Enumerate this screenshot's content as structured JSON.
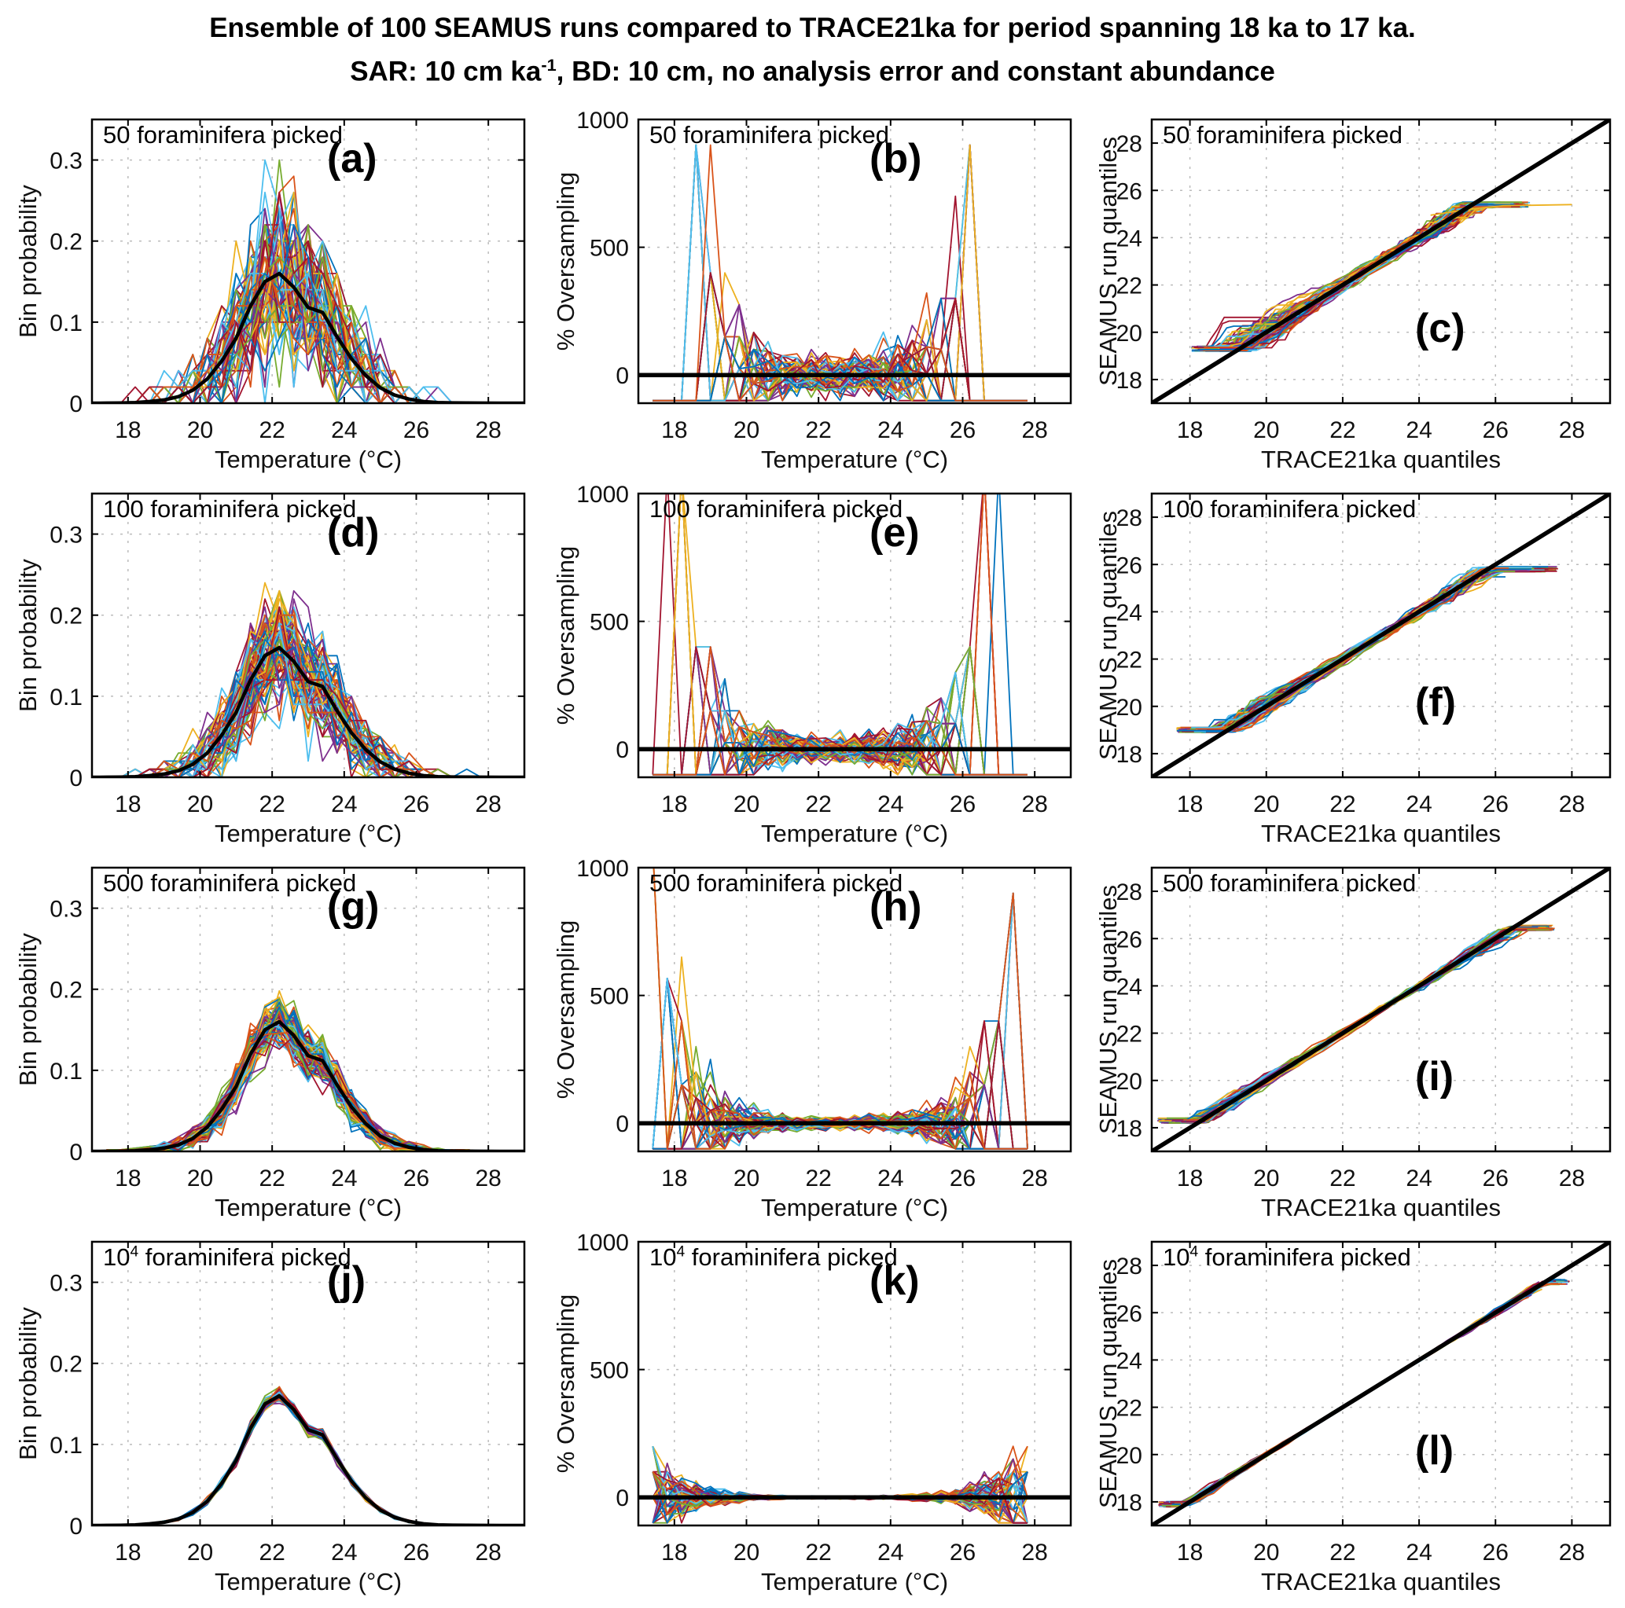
{
  "title": {
    "line1": "Ensemble of 100 SEAMUS runs compared to TRACE21ka for period spanning 18 ka to 17 ka.",
    "line2_prefix": "SAR: 10 cm ka",
    "line2_sup": "-1",
    "line2_suffix": ", BD: 10 cm, no analysis error and constant abundance"
  },
  "palette": [
    "#0072BD",
    "#D95319",
    "#EDB120",
    "#7E2F8E",
    "#77AC30",
    "#4DBEEE",
    "#A2142F"
  ],
  "chart_data": {
    "type": "line",
    "n_runs": 100,
    "description": "12-panel figure (4 rows x 3 columns). Each row = number of foraminifera picked (50, 100, 500, 10^4). Column 1: bin probability histograms of 100 SEAMUS runs (colored lines) vs TRACE21ka reference (thick black). Column 2: % oversampling of each run relative to TRACE21ka (black zero line). Column 3: QQ plots of SEAMUS run quantiles vs TRACE21ka quantiles (black 1:1 line).",
    "x_bins_temperature_degC": [
      17.4,
      17.8,
      18.2,
      18.6,
      19.0,
      19.4,
      19.8,
      20.2,
      20.6,
      21.0,
      21.4,
      21.8,
      22.2,
      22.6,
      23.0,
      23.4,
      23.8,
      24.2,
      24.6,
      25.0,
      25.4,
      25.8,
      26.2,
      26.6,
      27.0,
      27.4,
      27.8
    ],
    "reference_bin_probability_TRACE21ka": [
      0.0001,
      0.0003,
      0.0008,
      0.002,
      0.004,
      0.008,
      0.016,
      0.03,
      0.052,
      0.08,
      0.12,
      0.15,
      0.16,
      0.143,
      0.118,
      0.112,
      0.082,
      0.055,
      0.034,
      0.019,
      0.01,
      0.005,
      0.002,
      0.0008,
      0.0004,
      0.0002,
      0.0001
    ],
    "panels": [
      {
        "id": "a",
        "kind": "hist",
        "letter": "(a)",
        "letter_pos": "tr",
        "label_prefix": "50",
        "label_sup": "",
        "label_suffix": " foraminifera picked",
        "n_picked": 50,
        "xlabel": "Temperature (°C)",
        "ylabel": "Bin probability",
        "xlim": [
          17,
          29
        ],
        "ylim": [
          0,
          0.35
        ],
        "xticks": [
          18,
          20,
          22,
          24,
          26,
          28
        ],
        "yticks": [
          0,
          0.1,
          0.2,
          0.3
        ],
        "black_line": "TRACE21ka reference distribution, peak 0.16 at 22.2 °C",
        "seed": 7
      },
      {
        "id": "b",
        "kind": "oversamp",
        "letter": "(b)",
        "letter_pos": "tr",
        "label_prefix": "50",
        "label_sup": "",
        "label_suffix": " foraminifera picked",
        "n_picked": 50,
        "xlabel": "Temperature (°C)",
        "ylabel": "% Oversampling",
        "xlim": [
          17,
          29
        ],
        "ylim": [
          -110,
          1000
        ],
        "xticks": [
          18,
          20,
          22,
          24,
          26,
          28
        ],
        "yticks": [
          0,
          500,
          1000
        ],
        "black_line": "zero reference line (y=0)",
        "seed": 101
      },
      {
        "id": "c",
        "kind": "qq",
        "letter": "(c)",
        "letter_pos": "br",
        "label_prefix": "50",
        "label_sup": "",
        "label_suffix": " foraminifera picked",
        "n_picked": 50,
        "xlabel": "TRACE21ka quantiles",
        "ylabel": "SEAMUS run quantiles",
        "xlim": [
          17,
          29
        ],
        "ylim": [
          17,
          29
        ],
        "xticks": [
          18,
          20,
          22,
          24,
          26,
          28
        ],
        "yticks": [
          18,
          20,
          22,
          24,
          26,
          28
        ],
        "black_line": "1:1 line (y=x)",
        "seed": 23,
        "qq": {
          "x_range": [
            18.3,
            26.35
          ],
          "y_range": [
            19.3,
            25.4
          ],
          "s_center": 0.1,
          "s_tail": 0.5,
          "jx0": 0.9,
          "jx1": 0.9
        },
        "extra_line": {
          "color": "#EDB120",
          "points": [
            [
              24.3,
              24.95
            ],
            [
              25.3,
              25.2
            ],
            [
              26.2,
              25.35
            ],
            [
              28.0,
              25.4
            ]
          ]
        }
      },
      {
        "id": "d",
        "kind": "hist",
        "letter": "(d)",
        "letter_pos": "tr",
        "label_prefix": "100",
        "label_sup": "",
        "label_suffix": " foraminifera picked",
        "n_picked": 100,
        "xlabel": "Temperature (°C)",
        "ylabel": "Bin probability",
        "xlim": [
          17,
          29
        ],
        "ylim": [
          0,
          0.35
        ],
        "xticks": [
          18,
          20,
          22,
          24,
          26,
          28
        ],
        "yticks": [
          0,
          0.1,
          0.2,
          0.3
        ],
        "black_line": "TRACE21ka reference distribution, peak 0.16 at 22.2 °C",
        "seed": 8
      },
      {
        "id": "e",
        "kind": "oversamp",
        "letter": "(e)",
        "letter_pos": "tr",
        "label_prefix": "100",
        "label_sup": "",
        "label_suffix": " foraminifera picked",
        "n_picked": 100,
        "xlabel": "Temperature (°C)",
        "ylabel": "% Oversampling",
        "xlim": [
          17,
          29
        ],
        "ylim": [
          -110,
          1000
        ],
        "xticks": [
          18,
          20,
          22,
          24,
          26,
          28
        ],
        "yticks": [
          0,
          500,
          1000
        ],
        "black_line": "zero reference line (y=0)",
        "seed": 102
      },
      {
        "id": "f",
        "kind": "qq",
        "letter": "(f)",
        "letter_pos": "br",
        "label_prefix": "100",
        "label_sup": "",
        "label_suffix": " foraminifera picked",
        "n_picked": 100,
        "xlabel": "TRACE21ka quantiles",
        "ylabel": "SEAMUS run quantiles",
        "xlim": [
          17,
          29
        ],
        "ylim": [
          17,
          29
        ],
        "xticks": [
          18,
          20,
          22,
          24,
          26,
          28
        ],
        "yticks": [
          18,
          20,
          22,
          24,
          26,
          28
        ],
        "black_line": "1:1 line (y=x)",
        "seed": 24,
        "qq": {
          "x_range": [
            17.9,
            26.6
          ],
          "y_range": [
            19.0,
            25.8
          ],
          "s_center": 0.08,
          "s_tail": 0.32,
          "jx0": 0.9,
          "jx1": 1.6
        }
      },
      {
        "id": "g",
        "kind": "hist",
        "letter": "(g)",
        "letter_pos": "tr",
        "label_prefix": "500",
        "label_sup": "",
        "label_suffix": " foraminifera picked",
        "n_picked": 500,
        "xlabel": "Temperature (°C)",
        "ylabel": "Bin probability",
        "xlim": [
          17,
          29
        ],
        "ylim": [
          0,
          0.35
        ],
        "xticks": [
          18,
          20,
          22,
          24,
          26,
          28
        ],
        "yticks": [
          0,
          0.1,
          0.2,
          0.3
        ],
        "black_line": "TRACE21ka reference distribution, peak 0.16 at 22.2 °C",
        "seed": 9
      },
      {
        "id": "h",
        "kind": "oversamp",
        "letter": "(h)",
        "letter_pos": "tr",
        "label_prefix": "500",
        "label_sup": "",
        "label_suffix": " foraminifera picked",
        "n_picked": 500,
        "xlabel": "Temperature (°C)",
        "ylabel": "% Oversampling",
        "xlim": [
          17,
          29
        ],
        "ylim": [
          -110,
          1000
        ],
        "xticks": [
          18,
          20,
          22,
          24,
          26,
          28
        ],
        "yticks": [
          0,
          500,
          1000
        ],
        "black_line": "zero reference line (y=0)",
        "seed": 103
      },
      {
        "id": "i",
        "kind": "qq",
        "letter": "(i)",
        "letter_pos": "br",
        "label_prefix": "500",
        "label_sup": "",
        "label_suffix": " foraminifera picked",
        "n_picked": 500,
        "xlabel": "TRACE21ka quantiles",
        "ylabel": "SEAMUS run quantiles",
        "xlim": [
          17,
          29
        ],
        "ylim": [
          17,
          29
        ],
        "xticks": [
          18,
          20,
          22,
          24,
          26,
          28
        ],
        "yticks": [
          18,
          20,
          22,
          24,
          26,
          28
        ],
        "black_line": "1:1 line (y=x)",
        "seed": 25,
        "qq": {
          "x_range": [
            17.4,
            26.8
          ],
          "y_range": [
            18.3,
            26.45
          ],
          "s_center": 0.05,
          "s_tail": 0.2,
          "jx0": 0.9,
          "jx1": 1.2
        }
      },
      {
        "id": "j",
        "kind": "hist",
        "letter": "(j)",
        "letter_pos": "tr",
        "label_prefix": "10",
        "label_sup": "4",
        "label_suffix": " foraminifera picked",
        "n_picked": 10000,
        "xlabel": "Temperature (°C)",
        "ylabel": "Bin probability",
        "xlim": [
          17,
          29
        ],
        "ylim": [
          0,
          0.35
        ],
        "xticks": [
          18,
          20,
          22,
          24,
          26,
          28
        ],
        "yticks": [
          0,
          0.1,
          0.2,
          0.3
        ],
        "black_line": "TRACE21ka reference distribution, peak 0.16 at 22.2 °C",
        "seed": 10
      },
      {
        "id": "k",
        "kind": "oversamp",
        "letter": "(k)",
        "letter_pos": "tr",
        "label_prefix": "10",
        "label_sup": "4",
        "label_suffix": " foraminifera picked",
        "n_picked": 10000,
        "xlabel": "Temperature (°C)",
        "ylabel": "% Oversampling",
        "xlim": [
          17,
          29
        ],
        "ylim": [
          -110,
          1000
        ],
        "xticks": [
          18,
          20,
          22,
          24,
          26,
          28
        ],
        "yticks": [
          0,
          500,
          1000
        ],
        "black_line": "zero reference line (y=0)",
        "seed": 104
      },
      {
        "id": "l",
        "kind": "qq",
        "letter": "(l)",
        "letter_pos": "br",
        "label_prefix": "10",
        "label_sup": "4",
        "label_suffix": " foraminifera picked",
        "n_picked": 10000,
        "xlabel": "TRACE21ka quantiles",
        "ylabel": "SEAMUS run quantiles",
        "xlim": [
          17,
          29
        ],
        "ylim": [
          17,
          29
        ],
        "xticks": [
          18,
          20,
          22,
          24,
          26,
          28
        ],
        "yticks": [
          18,
          20,
          22,
          24,
          26,
          28
        ],
        "black_line": "1:1 line (y=x)",
        "seed": 26,
        "qq": {
          "x_range": [
            17.35,
            27.1
          ],
          "y_range": [
            17.9,
            27.3
          ],
          "s_center": 0.018,
          "s_tail": 0.09,
          "jx0": 0.6,
          "jx1": 1.3
        }
      }
    ]
  }
}
